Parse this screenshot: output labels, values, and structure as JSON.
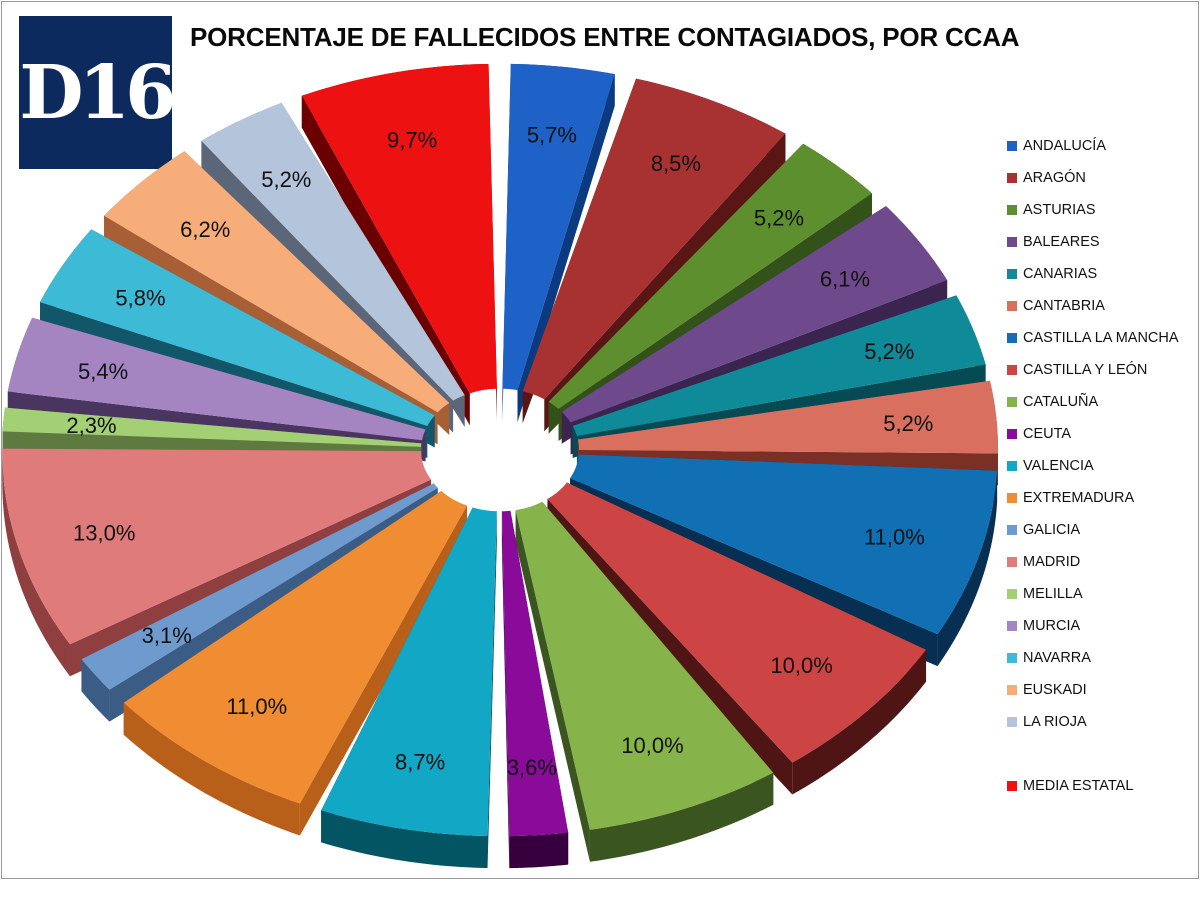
{
  "header": {
    "logo_text": "D16",
    "title": "PORCENTAJE DE FALLECIDOS ENTRE CONTAGIADOS, POR CCAA"
  },
  "chart_data": {
    "type": "pie",
    "title": "PORCENTAJE DE FALLECIDOS ENTRE CONTAGIADOS, POR CCAA",
    "legend_position": "right",
    "categories": [
      "ANDALUCÍA",
      "ARAGÓN",
      "ASTURIAS",
      "BALEARES",
      "CANARIAS",
      "CANTABRIA",
      "CASTILLA LA MANCHA",
      "CASTILLA Y LEÓN",
      "CATALUÑA",
      "CEUTA",
      "VALENCIA",
      "EXTREMADURA",
      "GALICIA",
      "MADRID",
      "MELILLA",
      "MURCIA",
      "NAVARRA",
      "EUSKADI",
      "LA RIOJA",
      "MEDIA ESTATAL"
    ],
    "values": [
      5.7,
      8.5,
      5.2,
      6.1,
      5.2,
      5.2,
      11.0,
      10.0,
      10.0,
      3.6,
      8.7,
      11.0,
      3.1,
      13.0,
      2.3,
      5.4,
      5.8,
      6.2,
      5.2,
      9.7
    ],
    "labels": [
      "5,7%",
      "8,5%",
      "5,2%",
      "6,1%",
      "5,2%",
      "5,2%",
      "11,0%",
      "10,0%",
      "10,0%",
      "3,6%",
      "8,7%",
      "11,0%",
      "3,1%",
      "13,0%",
      "2,3%",
      "5,4%",
      "5,8%",
      "6,2%",
      "5,2%",
      "9,7%"
    ],
    "colors": [
      "#1f62c7",
      "#a83232",
      "#5e8f2e",
      "#6e4a8c",
      "#0f8a99",
      "#d9705f",
      "#1170b4",
      "#cc4444",
      "#86b34a",
      "#8a0a9a",
      "#12a7c4",
      "#f08c32",
      "#6e9acd",
      "#e07b7b",
      "#a3cf75",
      "#a485c2",
      "#3dbad6",
      "#f7ad7a",
      "#b4c4db",
      "#ee1111"
    ],
    "side_colors": [
      "#0c3a80",
      "#5a1515",
      "#33521a",
      "#3b2550",
      "#064a54",
      "#7a3024",
      "#062f52",
      "#4f1515",
      "#3a5520",
      "#36003f",
      "#035563",
      "#b85f1a",
      "#3a5c85",
      "#8f3f3f",
      "#5e7a40",
      "#4a3560",
      "#12566a",
      "#a85f35",
      "#5b6779",
      "#6b0000"
    ]
  }
}
